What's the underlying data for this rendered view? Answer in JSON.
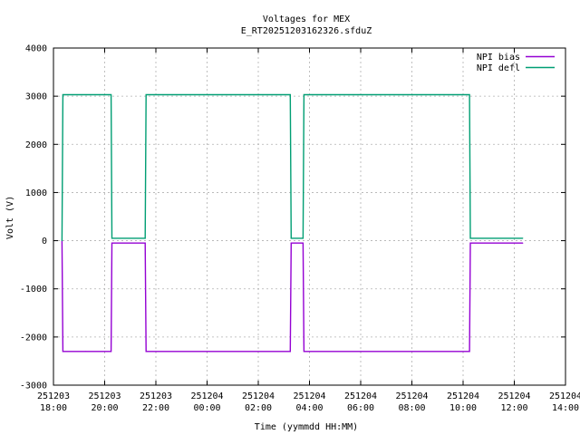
{
  "chart_data": {
    "type": "line",
    "title": "Voltages for MEX",
    "subtitle": "E_RT20251203162326.sfduZ",
    "xlabel": "Time (yymmdd HH:MM)",
    "ylabel": "Volt (V)",
    "xlim": [
      "2025-12-03 18:00",
      "2025-12-04 14:00"
    ],
    "ylim": [
      -3000,
      4000
    ],
    "grid": true,
    "legend_position": "top-right",
    "x_ticks": [
      {
        "date": "251203",
        "time": "18:00",
        "x": "2025-12-03 18:00"
      },
      {
        "date": "251203",
        "time": "20:00",
        "x": "2025-12-03 20:00"
      },
      {
        "date": "251203",
        "time": "22:00",
        "x": "2025-12-03 22:00"
      },
      {
        "date": "251204",
        "time": "00:00",
        "x": "2025-12-04 00:00"
      },
      {
        "date": "251204",
        "time": "02:00",
        "x": "2025-12-04 02:00"
      },
      {
        "date": "251204",
        "time": "04:00",
        "x": "2025-12-04 04:00"
      },
      {
        "date": "251204",
        "time": "06:00",
        "x": "2025-12-04 06:00"
      },
      {
        "date": "251204",
        "time": "08:00",
        "x": "2025-12-04 08:00"
      },
      {
        "date": "251204",
        "time": "10:00",
        "x": "2025-12-04 10:00"
      },
      {
        "date": "251204",
        "time": "12:00",
        "x": "2025-12-04 12:00"
      },
      {
        "date": "251204",
        "time": "14:00",
        "x": "2025-12-04 14:00"
      }
    ],
    "y_ticks": [
      {
        "label": "4000",
        "value": 4000
      },
      {
        "label": "3000",
        "value": 3000
      },
      {
        "label": "2000",
        "value": 2000
      },
      {
        "label": "1000",
        "value": 1000
      },
      {
        "label": "0",
        "value": 0
      },
      {
        "label": "-1000",
        "value": -1000
      },
      {
        "label": "-2000",
        "value": -2000
      },
      {
        "label": "-3000",
        "value": -3000
      }
    ],
    "series": [
      {
        "name": "NPI bias",
        "color": "#9400d3",
        "points": [
          {
            "x": "2025-12-03 18:20",
            "y": 0
          },
          {
            "x": "2025-12-03 18:22",
            "y": -2300
          },
          {
            "x": "2025-12-03 19:15",
            "y": -2300
          },
          {
            "x": "2025-12-03 20:15",
            "y": -2300
          },
          {
            "x": "2025-12-03 20:17",
            "y": -50
          },
          {
            "x": "2025-12-03 21:35",
            "y": -50
          },
          {
            "x": "2025-12-03 21:37",
            "y": -2300
          },
          {
            "x": "2025-12-04 03:15",
            "y": -2300
          },
          {
            "x": "2025-12-04 03:17",
            "y": -50
          },
          {
            "x": "2025-12-04 03:45",
            "y": -50
          },
          {
            "x": "2025-12-04 03:47",
            "y": -2300
          },
          {
            "x": "2025-12-04 10:15",
            "y": -2300
          },
          {
            "x": "2025-12-04 10:17",
            "y": -50
          },
          {
            "x": "2025-12-04 12:20",
            "y": -50
          }
        ]
      },
      {
        "name": "NPI defl",
        "color": "#009e73",
        "points": [
          {
            "x": "2025-12-03 18:20",
            "y": 0
          },
          {
            "x": "2025-12-03 18:22",
            "y": 3030
          },
          {
            "x": "2025-12-03 20:15",
            "y": 3030
          },
          {
            "x": "2025-12-03 20:17",
            "y": 50
          },
          {
            "x": "2025-12-03 21:35",
            "y": 50
          },
          {
            "x": "2025-12-03 21:37",
            "y": 3030
          },
          {
            "x": "2025-12-04 03:15",
            "y": 3030
          },
          {
            "x": "2025-12-04 03:17",
            "y": 50
          },
          {
            "x": "2025-12-04 03:45",
            "y": 50
          },
          {
            "x": "2025-12-04 03:47",
            "y": 3030
          },
          {
            "x": "2025-12-04 10:15",
            "y": 3030
          },
          {
            "x": "2025-12-04 10:17",
            "y": 50
          },
          {
            "x": "2025-12-04 12:20",
            "y": 50
          }
        ]
      }
    ]
  }
}
